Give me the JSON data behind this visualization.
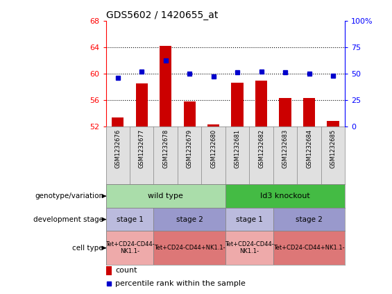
{
  "title": "GDS5602 / 1420655_at",
  "samples": [
    "GSM1232676",
    "GSM1232677",
    "GSM1232678",
    "GSM1232679",
    "GSM1232680",
    "GSM1232681",
    "GSM1232682",
    "GSM1232683",
    "GSM1232684",
    "GSM1232685"
  ],
  "counts": [
    53.3,
    58.5,
    64.2,
    55.8,
    52.3,
    58.6,
    58.9,
    56.3,
    56.3,
    52.8
  ],
  "percentiles": [
    46,
    52,
    62,
    50,
    47,
    51,
    52,
    51,
    50,
    48
  ],
  "ymin": 52,
  "ymax": 68,
  "yticks": [
    52,
    56,
    60,
    64,
    68
  ],
  "y2min": 0,
  "y2max": 100,
  "y2ticks": [
    0,
    25,
    50,
    75,
    100
  ],
  "y2tick_labels": [
    "0",
    "25",
    "50",
    "75",
    "100%"
  ],
  "bar_color": "#cc0000",
  "dot_color": "#0000cc",
  "genotype_groups": [
    {
      "label": "wild type",
      "start": 0,
      "end": 5,
      "color": "#aaddaa"
    },
    {
      "label": "Id3 knockout",
      "start": 5,
      "end": 10,
      "color": "#44bb44"
    }
  ],
  "stage_groups": [
    {
      "label": "stage 1",
      "start": 0,
      "end": 2,
      "color": "#bbbbdd"
    },
    {
      "label": "stage 2",
      "start": 2,
      "end": 5,
      "color": "#9999cc"
    },
    {
      "label": "stage 1",
      "start": 5,
      "end": 7,
      "color": "#bbbbdd"
    },
    {
      "label": "stage 2",
      "start": 7,
      "end": 10,
      "color": "#9999cc"
    }
  ],
  "celltype_groups": [
    {
      "label": "Tet+CD24-CD44-\nNK1.1-",
      "start": 0,
      "end": 2,
      "color": "#eeaaaa"
    },
    {
      "label": "Tet+CD24-CD44+NK1.1-",
      "start": 2,
      "end": 5,
      "color": "#dd7777"
    },
    {
      "label": "Tet+CD24-CD44-\nNK1.1-",
      "start": 5,
      "end": 7,
      "color": "#eeaaaa"
    },
    {
      "label": "Tet+CD24-CD44+NK1.1-",
      "start": 7,
      "end": 10,
      "color": "#dd7777"
    }
  ],
  "row_labels": [
    "genotype/variation",
    "development stage",
    "cell type"
  ],
  "sample_bg": "#e0e0e0"
}
